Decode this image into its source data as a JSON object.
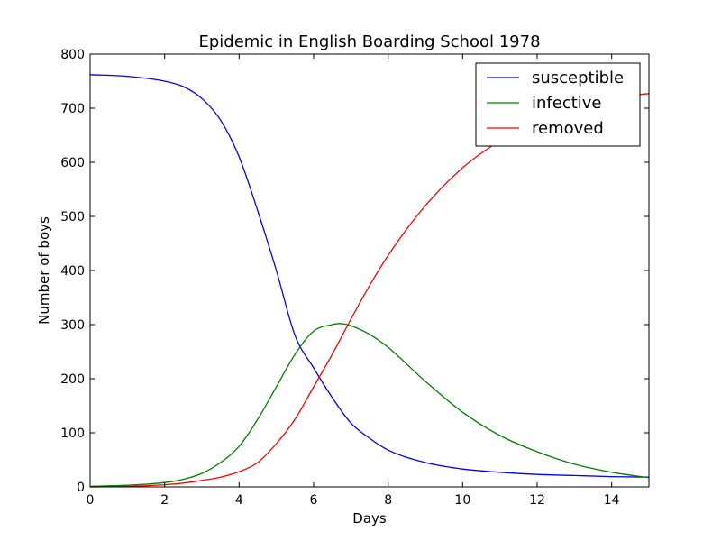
{
  "chart_data": {
    "type": "line",
    "title": "Epidemic in English Boarding School 1978",
    "xlabel": "Days",
    "ylabel": "Number of boys",
    "xlim": [
      0,
      15
    ],
    "ylim": [
      0,
      800
    ],
    "xticks": [
      0,
      2,
      4,
      6,
      8,
      10,
      12,
      14
    ],
    "yticks": [
      0,
      100,
      200,
      300,
      400,
      500,
      600,
      700,
      800
    ],
    "grid": false,
    "legend_position": "top-right",
    "series": [
      {
        "name": "susceptible",
        "color": "#0000ff",
        "x": [
          0,
          1,
          2,
          2.5,
          3,
          3.5,
          4,
          4.5,
          5,
          5.5,
          6,
          6.5,
          7,
          7.5,
          8,
          9,
          10,
          11,
          12,
          13,
          14,
          15
        ],
        "y": [
          762,
          759,
          750,
          740,
          718,
          678,
          610,
          510,
          400,
          280,
          220,
          165,
          118,
          90,
          68,
          45,
          33,
          27,
          23,
          21,
          19,
          18
        ]
      },
      {
        "name": "infective",
        "color": "#008000",
        "x": [
          0,
          1,
          2,
          2.5,
          3,
          3.5,
          4,
          4.5,
          5,
          5.5,
          6,
          6.5,
          6.7,
          7,
          7.5,
          8,
          9,
          10,
          11,
          12,
          13,
          14,
          15
        ],
        "y": [
          1,
          3,
          8,
          14,
          25,
          45,
          75,
          125,
          185,
          245,
          288,
          300,
          302,
          298,
          282,
          258,
          195,
          138,
          95,
          65,
          42,
          27,
          17
        ]
      },
      {
        "name": "removed",
        "color": "#ff0000",
        "x": [
          0,
          1,
          2,
          2.5,
          3,
          3.5,
          4,
          4.5,
          5,
          5.5,
          6,
          6.5,
          7,
          7.5,
          8,
          9,
          10,
          11,
          12,
          13,
          14,
          15
        ],
        "y": [
          0,
          1,
          4,
          7,
          12,
          18,
          28,
          45,
          80,
          125,
          185,
          245,
          310,
          372,
          428,
          520,
          590,
          640,
          680,
          705,
          720,
          727
        ]
      }
    ]
  }
}
